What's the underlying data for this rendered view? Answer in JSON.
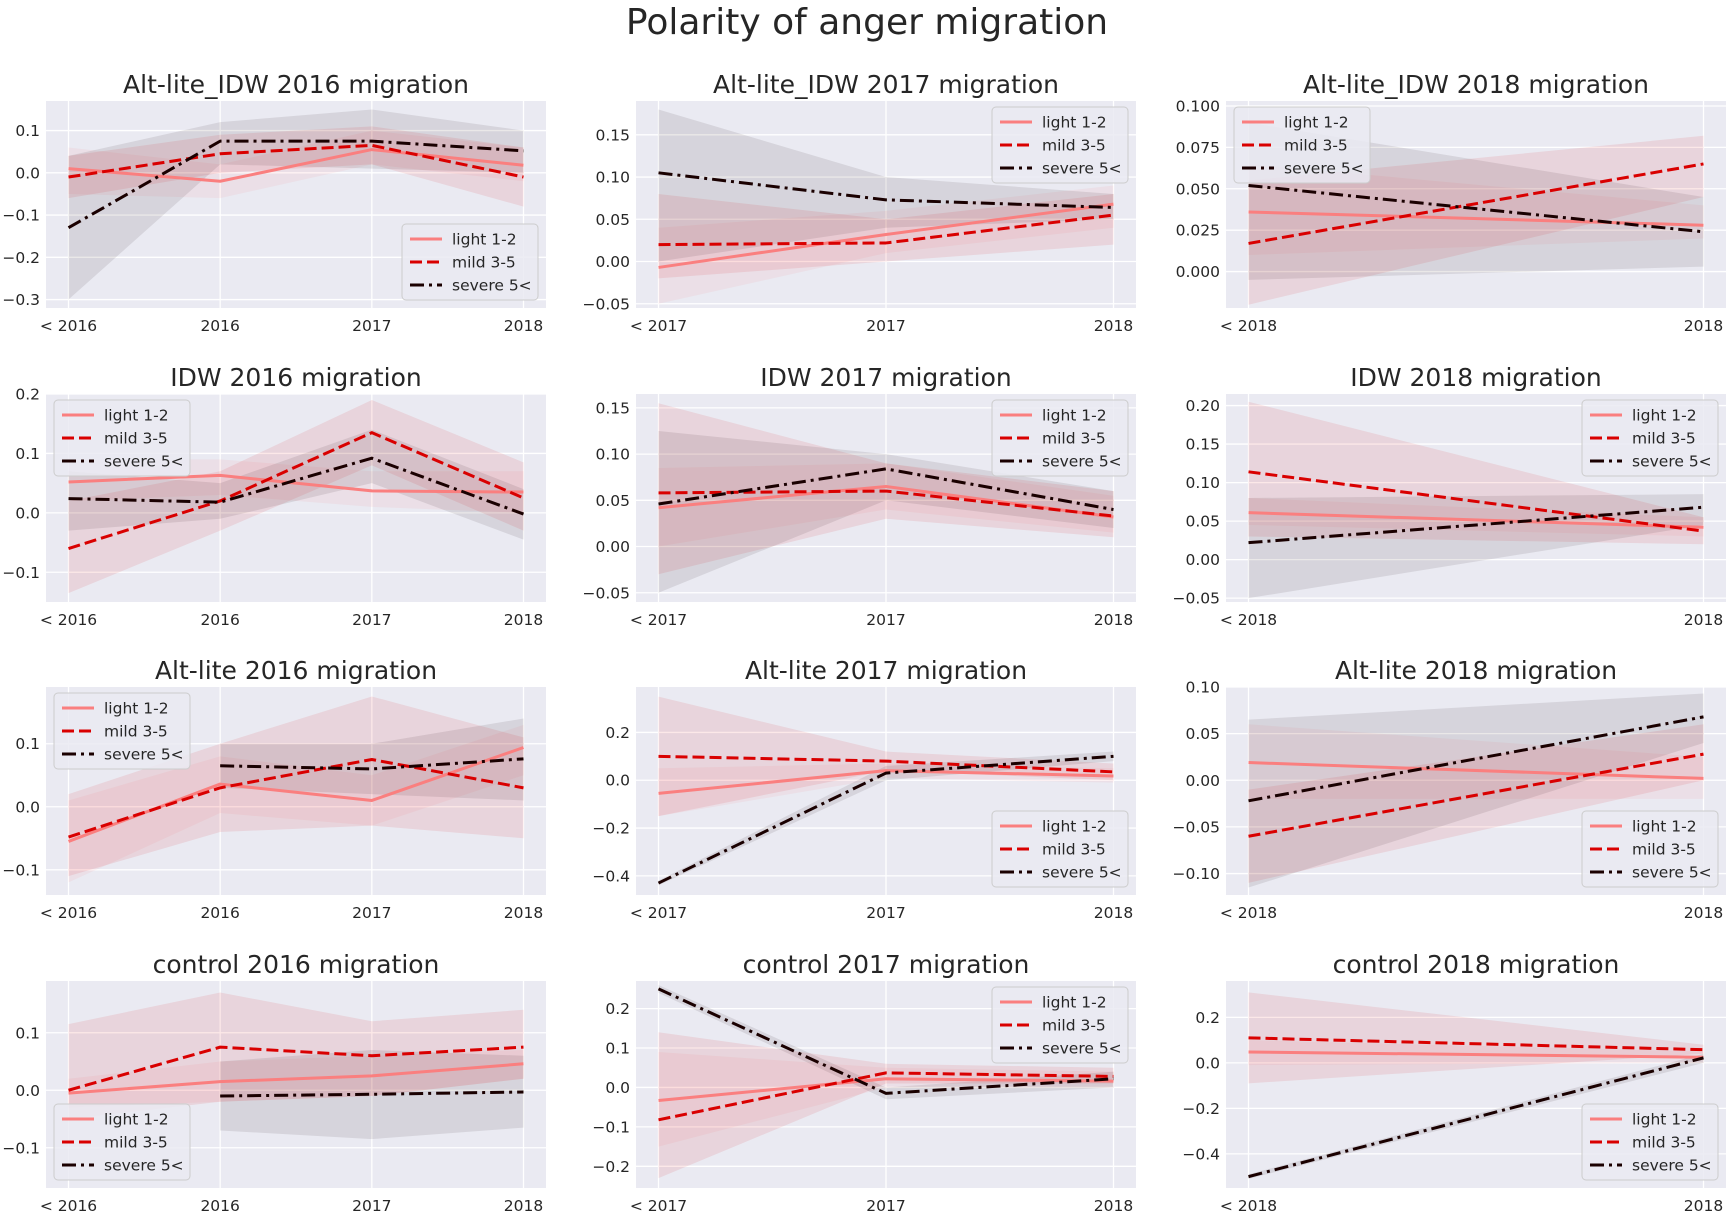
{
  "figure": {
    "title": "Polarity of anger migration"
  },
  "colors": {
    "background": "#ffffff",
    "panel": "#eaeaf2",
    "grid": "#ffffff",
    "light": "#fa7f7f",
    "mild": "#d90000",
    "severe": "#1a0000"
  },
  "legend_labels": [
    "light 1-2",
    "mild 3-5",
    "severe 5<"
  ],
  "chart_data": [
    {
      "type": "line",
      "title": "Alt-lite_IDW 2016 migration",
      "categories": [
        "< 2016",
        "2016",
        "2017",
        "2018"
      ],
      "ylim": [
        -0.32,
        0.17
      ],
      "yticks": [
        -0.3,
        -0.2,
        -0.1,
        0.0,
        0.1
      ],
      "ytick_labels": [
        "−0.3",
        "−0.2",
        "−0.1",
        "0.0",
        "0.1"
      ],
      "legend": "lower-right",
      "grid": true,
      "series": [
        {
          "name": "light 1-2",
          "values": [
            0.01,
            -0.02,
            0.055,
            0.018
          ],
          "ci_low": [
            -0.05,
            -0.06,
            0.02,
            -0.02
          ],
          "ci_high": [
            0.06,
            0.02,
            0.1,
            0.06
          ]
        },
        {
          "name": "mild 3-5",
          "values": [
            -0.01,
            0.045,
            0.065,
            -0.01
          ],
          "ci_low": [
            -0.06,
            0.0,
            0.02,
            -0.08
          ],
          "ci_high": [
            0.04,
            0.09,
            0.11,
            0.06
          ]
        },
        {
          "name": "severe 5<",
          "values": [
            -0.13,
            0.075,
            0.075,
            0.052
          ],
          "ci_low": [
            -0.3,
            0.02,
            0.01,
            0.0
          ],
          "ci_high": [
            0.04,
            0.12,
            0.15,
            0.1
          ]
        }
      ]
    },
    {
      "type": "line",
      "title": "Alt-lite_IDW 2017 migration",
      "categories": [
        "< 2017",
        "2017",
        "2018"
      ],
      "ylim": [
        -0.055,
        0.19
      ],
      "yticks": [
        -0.05,
        0.0,
        0.05,
        0.1,
        0.15
      ],
      "ytick_labels": [
        "−0.05",
        "0.00",
        "0.05",
        "0.10",
        "0.15"
      ],
      "legend": "top-right",
      "grid": true,
      "series": [
        {
          "name": "light 1-2",
          "values": [
            -0.007,
            0.032,
            0.068
          ],
          "ci_low": [
            -0.05,
            0.01,
            0.04
          ],
          "ci_high": [
            0.04,
            0.06,
            0.09
          ]
        },
        {
          "name": "mild 3-5",
          "values": [
            0.02,
            0.022,
            0.055
          ],
          "ci_low": [
            -0.02,
            0.0,
            0.02
          ],
          "ci_high": [
            0.08,
            0.05,
            0.08
          ]
        },
        {
          "name": "severe 5<",
          "values": [
            0.105,
            0.073,
            0.064
          ],
          "ci_low": [
            0.0,
            0.04,
            0.05
          ],
          "ci_high": [
            0.18,
            0.1,
            0.08
          ]
        }
      ]
    },
    {
      "type": "line",
      "title": "Alt-lite_IDW 2018 migration",
      "categories": [
        "< 2018",
        "2018"
      ],
      "ylim": [
        -0.022,
        0.103
      ],
      "yticks": [
        0.0,
        0.025,
        0.05,
        0.075,
        0.1
      ],
      "ytick_labels": [
        "0.000",
        "0.025",
        "0.050",
        "0.075",
        "0.100"
      ],
      "legend": "top-left",
      "grid": true,
      "series": [
        {
          "name": "light 1-2",
          "values": [
            0.036,
            0.028
          ],
          "ci_low": [
            0.01,
            0.02
          ],
          "ci_high": [
            0.065,
            0.04
          ]
        },
        {
          "name": "mild 3-5",
          "values": [
            0.017,
            0.065
          ],
          "ci_low": [
            -0.02,
            0.045
          ],
          "ci_high": [
            0.055,
            0.082
          ]
        },
        {
          "name": "severe 5<",
          "values": [
            0.052,
            0.024
          ],
          "ci_low": [
            -0.005,
            0.003
          ],
          "ci_high": [
            0.09,
            0.045
          ]
        }
      ]
    },
    {
      "type": "line",
      "title": "IDW 2016 migration",
      "categories": [
        "< 2016",
        "2016",
        "2017",
        "2018"
      ],
      "ylim": [
        -0.15,
        0.2
      ],
      "yticks": [
        -0.1,
        0.0,
        0.1,
        0.2
      ],
      "ytick_labels": [
        "−0.1",
        "0.0",
        "0.1",
        "0.2"
      ],
      "legend": "top-left",
      "grid": true,
      "series": [
        {
          "name": "light 1-2",
          "values": [
            0.052,
            0.063,
            0.037,
            0.035
          ],
          "ci_low": [
            0.02,
            0.03,
            0.01,
            0.0
          ],
          "ci_high": [
            0.09,
            0.09,
            0.07,
            0.07
          ]
        },
        {
          "name": "mild 3-5",
          "values": [
            -0.06,
            0.02,
            0.135,
            0.025
          ],
          "ci_low": [
            -0.135,
            -0.03,
            0.08,
            -0.03
          ],
          "ci_high": [
            0.02,
            0.07,
            0.19,
            0.085
          ]
        },
        {
          "name": "severe 5<",
          "values": [
            0.024,
            0.018,
            0.092,
            -0.002
          ],
          "ci_low": [
            -0.03,
            -0.01,
            0.05,
            -0.045
          ],
          "ci_high": [
            0.07,
            0.05,
            0.14,
            0.04
          ]
        }
      ]
    },
    {
      "type": "line",
      "title": "IDW 2017 migration",
      "categories": [
        "< 2017",
        "2017",
        "2018"
      ],
      "ylim": [
        -0.06,
        0.165
      ],
      "yticks": [
        -0.05,
        0.0,
        0.05,
        0.1,
        0.15
      ],
      "ytick_labels": [
        "−0.05",
        "0.00",
        "0.05",
        "0.10",
        "0.15"
      ],
      "legend": "top-right",
      "grid": true,
      "series": [
        {
          "name": "light 1-2",
          "values": [
            0.042,
            0.065,
            0.032
          ],
          "ci_low": [
            0.0,
            0.04,
            0.015
          ],
          "ci_high": [
            0.085,
            0.09,
            0.055
          ]
        },
        {
          "name": "mild 3-5",
          "values": [
            0.058,
            0.06,
            0.033
          ],
          "ci_low": [
            -0.03,
            0.03,
            0.01
          ],
          "ci_high": [
            0.155,
            0.09,
            0.06
          ]
        },
        {
          "name": "severe 5<",
          "values": [
            0.046,
            0.084,
            0.04
          ],
          "ci_low": [
            -0.05,
            0.05,
            0.02
          ],
          "ci_high": [
            0.125,
            0.1,
            0.06
          ]
        }
      ]
    },
    {
      "type": "line",
      "title": "IDW 2018 migration",
      "categories": [
        "< 2018",
        "2018"
      ],
      "ylim": [
        -0.055,
        0.215
      ],
      "yticks": [
        -0.05,
        0.0,
        0.05,
        0.1,
        0.15,
        0.2
      ],
      "ytick_labels": [
        "−0.05",
        "0.00",
        "0.05",
        "0.10",
        "0.15",
        "0.20"
      ],
      "legend": "top-right",
      "grid": true,
      "series": [
        {
          "name": "light 1-2",
          "values": [
            0.061,
            0.042
          ],
          "ci_low": [
            0.045,
            0.03
          ],
          "ci_high": [
            0.08,
            0.055
          ]
        },
        {
          "name": "mild 3-5",
          "values": [
            0.114,
            0.037
          ],
          "ci_low": [
            0.03,
            0.02
          ],
          "ci_high": [
            0.205,
            0.055
          ]
        },
        {
          "name": "severe 5<",
          "values": [
            0.022,
            0.068
          ],
          "ci_low": [
            -0.05,
            0.045
          ],
          "ci_high": [
            0.08,
            0.085
          ]
        }
      ]
    },
    {
      "type": "line",
      "title": "Alt-lite 2016 migration",
      "categories": [
        "< 2016",
        "2016",
        "2017",
        "2018"
      ],
      "ylim": [
        -0.14,
        0.19
      ],
      "yticks": [
        -0.1,
        0.0,
        0.1
      ],
      "ytick_labels": [
        "−0.1",
        "0.0",
        "0.1"
      ],
      "legend": "top-left",
      "grid": true,
      "series": [
        {
          "name": "light 1-2",
          "values": [
            -0.055,
            0.036,
            0.01,
            0.094
          ],
          "ci_low": [
            -0.12,
            -0.01,
            -0.03,
            0.05
          ],
          "ci_high": [
            0.01,
            0.08,
            0.05,
            0.13
          ]
        },
        {
          "name": "mild 3-5",
          "values": [
            -0.048,
            0.03,
            0.075,
            0.03
          ],
          "ci_low": [
            -0.11,
            -0.04,
            -0.03,
            -0.05
          ],
          "ci_high": [
            0.02,
            0.1,
            0.175,
            0.11
          ]
        },
        {
          "name": "severe 5<",
          "values": [
            null,
            0.065,
            0.06,
            0.076
          ],
          "ci_low": [
            null,
            0.03,
            0.02,
            0.01
          ],
          "ci_high": [
            null,
            0.1,
            0.1,
            0.14
          ]
        }
      ]
    },
    {
      "type": "line",
      "title": "Alt-lite 2017 migration",
      "categories": [
        "< 2017",
        "2017",
        "2018"
      ],
      "ylim": [
        -0.48,
        0.39
      ],
      "yticks": [
        -0.4,
        -0.2,
        0.0,
        0.2
      ],
      "ytick_labels": [
        "−0.4",
        "−0.2",
        "0.0",
        "0.2"
      ],
      "legend": "lower-right",
      "grid": true,
      "series": [
        {
          "name": "light 1-2",
          "values": [
            -0.055,
            0.04,
            0.018
          ],
          "ci_low": [
            -0.15,
            0.01,
            -0.01
          ],
          "ci_high": [
            0.05,
            0.07,
            0.05
          ]
        },
        {
          "name": "mild 3-5",
          "values": [
            0.1,
            0.08,
            0.035
          ],
          "ci_low": [
            -0.15,
            0.04,
            0.0
          ],
          "ci_high": [
            0.35,
            0.12,
            0.07
          ]
        },
        {
          "name": "severe 5<",
          "values": [
            -0.43,
            0.03,
            0.1
          ],
          "ci_low": [
            -0.44,
            0.0,
            0.08
          ],
          "ci_high": [
            -0.42,
            0.06,
            0.12
          ]
        }
      ]
    },
    {
      "type": "line",
      "title": "Alt-lite 2018 migration",
      "categories": [
        "< 2018",
        "2018"
      ],
      "ylim": [
        -0.123,
        0.1
      ],
      "yticks": [
        -0.1,
        -0.05,
        0.0,
        0.05,
        0.1
      ],
      "ytick_labels": [
        "−0.10",
        "−0.05",
        "0.00",
        "0.05",
        "0.10"
      ],
      "legend": "lower-right",
      "grid": true,
      "series": [
        {
          "name": "light 1-2",
          "values": [
            0.019,
            0.002
          ],
          "ci_low": [
            -0.02,
            -0.02
          ],
          "ci_high": [
            0.06,
            0.025
          ]
        },
        {
          "name": "mild 3-5",
          "values": [
            -0.06,
            0.028
          ],
          "ci_low": [
            -0.11,
            0.0
          ],
          "ci_high": [
            -0.01,
            0.06
          ]
        },
        {
          "name": "severe 5<",
          "values": [
            -0.022,
            0.068
          ],
          "ci_low": [
            -0.115,
            0.04
          ],
          "ci_high": [
            0.065,
            0.093
          ]
        }
      ]
    },
    {
      "type": "line",
      "title": "control 2016 migration",
      "categories": [
        "< 2016",
        "2016",
        "2017",
        "2018"
      ],
      "ylim": [
        -0.17,
        0.19
      ],
      "yticks": [
        -0.1,
        0.0,
        0.1
      ],
      "ytick_labels": [
        "−0.1",
        "0.0",
        "0.1"
      ],
      "legend": "lower-left",
      "grid": true,
      "series": [
        {
          "name": "light 1-2",
          "values": [
            -0.005,
            0.015,
            0.025,
            0.046
          ],
          "ci_low": [
            -0.03,
            -0.02,
            -0.01,
            0.02
          ],
          "ci_high": [
            0.02,
            0.05,
            0.06,
            0.07
          ]
        },
        {
          "name": "mild 3-5",
          "values": [
            0.0,
            0.075,
            0.06,
            0.075
          ],
          "ci_low": [
            -0.05,
            -0.02,
            -0.01,
            0.02
          ],
          "ci_high": [
            0.115,
            0.17,
            0.12,
            0.14
          ]
        },
        {
          "name": "severe 5<",
          "values": [
            null,
            -0.01,
            -0.007,
            -0.003
          ],
          "ci_low": [
            null,
            -0.07,
            -0.085,
            -0.065
          ],
          "ci_high": [
            null,
            0.05,
            0.07,
            0.06
          ]
        }
      ]
    },
    {
      "type": "line",
      "title": "control 2017 migration",
      "categories": [
        "< 2017",
        "2017",
        "2018"
      ],
      "ylim": [
        -0.255,
        0.27
      ],
      "yticks": [
        -0.2,
        -0.1,
        0.0,
        0.1,
        0.2
      ],
      "ytick_labels": [
        "−0.2",
        "−0.1",
        "0.0",
        "0.1",
        "0.2"
      ],
      "legend": "top-right",
      "grid": true,
      "series": [
        {
          "name": "light 1-2",
          "values": [
            -0.033,
            0.022,
            0.016
          ],
          "ci_low": [
            -0.15,
            0.0,
            0.0
          ],
          "ci_high": [
            0.09,
            0.05,
            0.04
          ]
        },
        {
          "name": "mild 3-5",
          "values": [
            -0.082,
            0.037,
            0.028
          ],
          "ci_low": [
            -0.23,
            0.01,
            0.01
          ],
          "ci_high": [
            0.14,
            0.06,
            0.05
          ]
        },
        {
          "name": "severe 5<",
          "values": [
            0.25,
            -0.015,
            0.022
          ],
          "ci_low": [
            0.24,
            -0.03,
            0.0
          ],
          "ci_high": [
            0.26,
            0.0,
            0.04
          ]
        }
      ]
    },
    {
      "type": "line",
      "title": "control 2018 migration",
      "categories": [
        "< 2018",
        "2018"
      ],
      "ylim": [
        -0.55,
        0.36
      ],
      "yticks": [
        -0.4,
        -0.2,
        0.0,
        0.2
      ],
      "ytick_labels": [
        "−0.4",
        "−0.2",
        "0.0",
        "0.2"
      ],
      "legend": "lower-right",
      "grid": true,
      "series": [
        {
          "name": "light 1-2",
          "values": [
            0.048,
            0.025
          ],
          "ci_low": [
            -0.01,
            0.0
          ],
          "ci_high": [
            0.1,
            0.05
          ]
        },
        {
          "name": "mild 3-5",
          "values": [
            0.11,
            0.058
          ],
          "ci_low": [
            -0.09,
            0.04
          ],
          "ci_high": [
            0.31,
            0.08
          ]
        },
        {
          "name": "severe 5<",
          "values": [
            -0.5,
            0.022
          ],
          "ci_low": [
            -0.51,
            0.0
          ],
          "ci_high": [
            -0.49,
            0.04
          ]
        }
      ]
    }
  ]
}
